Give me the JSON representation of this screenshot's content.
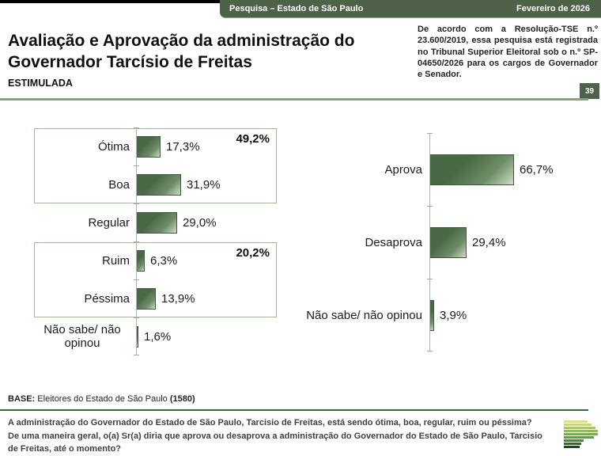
{
  "header": {
    "bar_left": "Pesquisa – Estado de São Paulo",
    "bar_right": "Fevereiro de 2026",
    "title_line1": "Avaliação e Aprovação da administração do",
    "title_line2": "Governador Tarcísio de Freitas",
    "subtitle": "ESTIMULADA",
    "note": "De acordo com a Resolução-TSE n.º 23.600/2019, essa pesquisa está registrada no Tribunal Superior Eleitoral sob o n.º SP-04650/2026 para os cargos de Governador e Senador.",
    "page_number": "39"
  },
  "colors": {
    "brand_green": "#4e624a",
    "bar_dark": "#4a6845",
    "bar_light": "#cfdfc8",
    "divider_olive": "#8ba07e",
    "divider_green": "#2e6d30",
    "group_box_border": "#a3b996"
  },
  "chart_data": [
    {
      "type": "bar",
      "orientation": "horizontal",
      "legend": "none",
      "grid": false,
      "xlim": [
        0,
        100
      ],
      "categories": [
        "Ótima",
        "Boa",
        "Regular",
        "Ruim",
        "Péssima",
        "Não sabe/ não opinou"
      ],
      "values": [
        17.3,
        31.9,
        29.0,
        6.3,
        13.9,
        1.6
      ],
      "items": [
        {
          "label": "Ótima",
          "value": 17.3,
          "display": "17,3%"
        },
        {
          "label": "Boa",
          "value": 31.9,
          "display": "31,9%"
        },
        {
          "label": "Regular",
          "value": 29.0,
          "display": "29,0%"
        },
        {
          "label": "Ruim",
          "value": 6.3,
          "display": "6,3%"
        },
        {
          "label": "Péssima",
          "value": 13.9,
          "display": "13,9%"
        },
        {
          "label": "Não sabe/ não opinou",
          "value": 1.6,
          "display": "1,6%"
        }
      ],
      "groups": [
        {
          "label": "49,2%",
          "covers": [
            "Ótima",
            "Boa"
          ]
        },
        {
          "label": "20,2%",
          "covers": [
            "Ruim",
            "Péssima"
          ]
        }
      ]
    },
    {
      "type": "bar",
      "orientation": "horizontal",
      "legend": "none",
      "grid": false,
      "xlim": [
        0,
        100
      ],
      "categories": [
        "Aprova",
        "Desaprova",
        "Não sabe/ não opinou"
      ],
      "values": [
        66.7,
        29.4,
        3.9
      ],
      "items": [
        {
          "label": "Aprova",
          "value": 66.7,
          "display": "66,7%"
        },
        {
          "label": "Desaprova",
          "value": 29.4,
          "display": "29,4%"
        },
        {
          "label": "Não sabe/ não opinou",
          "value": 3.9,
          "display": "3,9%"
        }
      ]
    }
  ],
  "footer": {
    "base_prefix": "BASE:",
    "base_text": " Eleitores do Estado de São Paulo ",
    "base_count": "(1580)",
    "question1": "A administração do Governador do Estado de São Paulo, Tarcisio de Freitas, está sendo ótima, boa, regular, ruim ou péssima?",
    "question2": "De uma maneira geral, o(a) Sr(a) diria que aprova ou desaprova a administração do Governador do Estado de São Paulo, Tarcisio de Freitas, até o momento?"
  },
  "logo": {
    "name": "parana-pesquisas-bars-logo",
    "bars": [
      {
        "w": 30,
        "c": "#d9e289"
      },
      {
        "w": 35,
        "c": "#c9d96b"
      },
      {
        "w": 40,
        "c": "#a9cb55"
      },
      {
        "w": 43,
        "c": "#8dbf4d"
      },
      {
        "w": 43,
        "c": "#76b147"
      },
      {
        "w": 38,
        "c": "#619e40"
      },
      {
        "w": 25,
        "c": "#4b8636"
      },
      {
        "w": 22,
        "c": "#39682b"
      },
      {
        "w": 20,
        "c": "#1c4420"
      }
    ]
  }
}
